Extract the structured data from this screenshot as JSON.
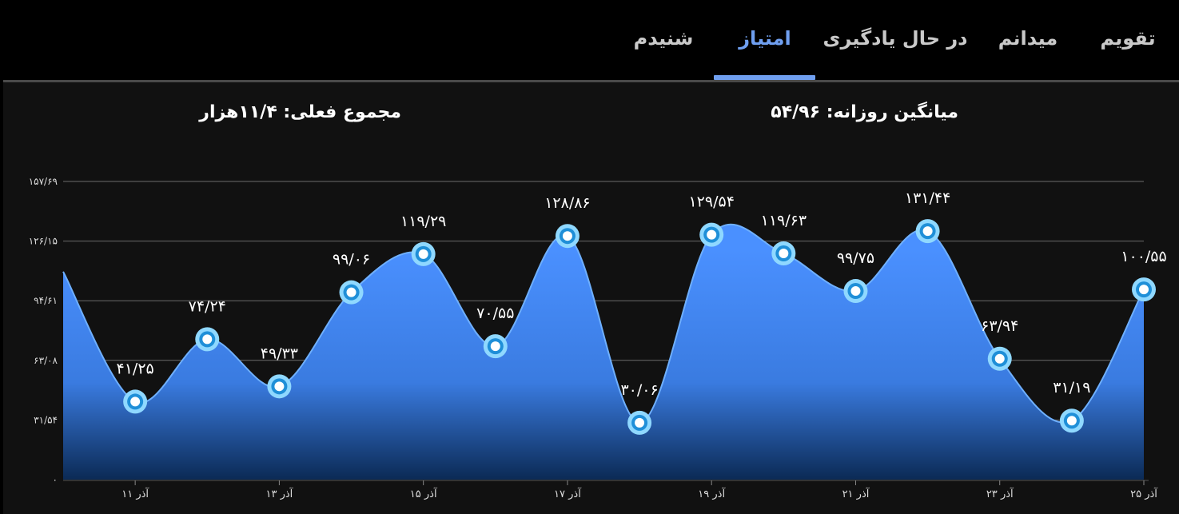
{
  "tabs": [
    {
      "label": "تقویم",
      "active": false
    },
    {
      "label": "میدانم",
      "active": false
    },
    {
      "label": "در حال یادگیری",
      "active": false
    },
    {
      "label": "امتیاز",
      "active": true
    },
    {
      "label": "شنیدم",
      "active": false
    }
  ],
  "stats": {
    "daily_average": "میانگین روزانه: ۵۴/۹۶",
    "current_total": "مجموع فعلی: ۱۱/۴هزار"
  },
  "colors": {
    "accent": "#6f9ff0",
    "area_top": "#4a90ff",
    "area_bottom": "#0b2a55",
    "marker_ring": "#8fd8ff",
    "background": "#111111"
  },
  "chart_data": {
    "type": "area",
    "x": [
      10,
      11,
      12,
      13,
      14,
      15,
      16,
      17,
      18,
      19,
      20,
      21,
      22,
      23,
      24,
      25
    ],
    "values": [
      110,
      41.25,
      74.24,
      49.33,
      99.06,
      119.29,
      70.55,
      128.86,
      30.06,
      129.54,
      119.63,
      99.75,
      131.44,
      63.94,
      31.19,
      100.55
    ],
    "data_labels": [
      "",
      "۴۱/۲۵",
      "۷۴/۲۴",
      "۴۹/۳۳",
      "۹۹/۰۶",
      "۱۱۹/۲۹",
      "۷۰/۵۵",
      "۱۲۸/۸۶",
      "۳۰/۰۶",
      "۱۲۹/۵۴",
      "۱۱۹/۶۳",
      "۹۹/۷۵",
      "۱۳۱/۴۴",
      "۶۳/۹۴",
      "۳۱/۱۹",
      "۱۰۰/۵۵"
    ],
    "markers": [
      false,
      true,
      true,
      true,
      true,
      true,
      true,
      true,
      true,
      true,
      true,
      true,
      true,
      true,
      true,
      true
    ],
    "x_tick_values": [
      11,
      13,
      15,
      17,
      19,
      21,
      23,
      25
    ],
    "x_tick_labels": [
      "۱۱ آذر",
      "۱۳ آذر",
      "۱۵ آذر",
      "۱۷ آذر",
      "۱۹ آذر",
      "۲۱ آذر",
      "۲۳ آذر",
      "۲۵ آذر"
    ],
    "y_ticks": [
      0,
      31.54,
      63.08,
      94.61,
      126.15,
      157.69
    ],
    "y_tick_labels": [
      "۰",
      "۳۱/۵۴",
      "۶۳/۰۸",
      "۹۴/۶۱",
      "۱۲۶/۱۵",
      "۱۵۷/۶۹"
    ],
    "ylim": [
      0,
      157.69
    ],
    "xlim": [
      10,
      25
    ],
    "grid": true
  }
}
